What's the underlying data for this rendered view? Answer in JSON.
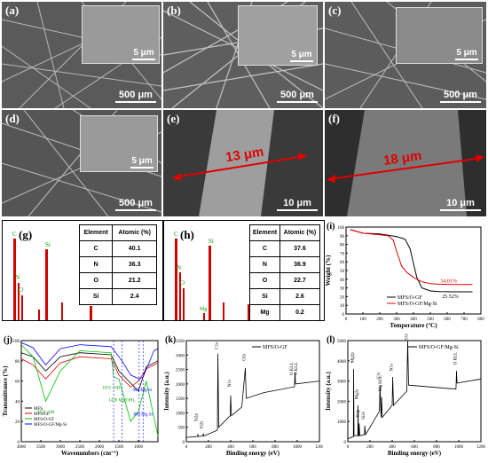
{
  "panels": {
    "a": {
      "label": "(a)",
      "scale": "500 μm",
      "inset_scale": "5 μm"
    },
    "b": {
      "label": "(b)",
      "scale": "500 μm",
      "inset_scale": "5 μm"
    },
    "c": {
      "label": "(c)",
      "scale": "500 μm",
      "inset_scale": "5 μm"
    },
    "d": {
      "label": "(d)",
      "scale": "500 μm",
      "inset_scale": "5 μm"
    },
    "e": {
      "label": "(e)",
      "scale": "10 μm",
      "measure": "13 μm"
    },
    "f": {
      "label": "(f)",
      "scale": "10 μm",
      "measure": "18 μm"
    },
    "g": {
      "label": "(g)"
    },
    "h": {
      "label": "(h)"
    },
    "i": {
      "label": "(i)"
    },
    "j": {
      "label": "(j)"
    },
    "k": {
      "label": "(k)"
    },
    "l": {
      "label": "(l)"
    }
  },
  "eds_g": {
    "headers": [
      "Element",
      "Atomic (%)"
    ],
    "rows": [
      [
        "C",
        "40.1"
      ],
      [
        "N",
        "36.3"
      ],
      [
        "O",
        "21.2"
      ],
      [
        "Si",
        "2.4"
      ]
    ],
    "peak_labels": [
      "C",
      "N",
      "O",
      "Si"
    ]
  },
  "eds_h": {
    "headers": [
      "Element",
      "Atomic (%)"
    ],
    "rows": [
      [
        "C",
        "37.6"
      ],
      [
        "N",
        "36.9"
      ],
      [
        "O",
        "22.7"
      ],
      [
        "Si",
        "2.6"
      ],
      [
        "Mg",
        "0.2"
      ]
    ],
    "peak_labels": [
      "C",
      "N",
      "O",
      "Si",
      "Mg"
    ]
  },
  "chart_data": [
    {
      "id": "i",
      "type": "line",
      "xlabel": "Temperature (°C)",
      "ylabel": "Weight (%)",
      "xlim": [
        0,
        800
      ],
      "ylim": [
        0,
        100
      ],
      "xticks": [
        0,
        100,
        200,
        300,
        400,
        500,
        600,
        700,
        800
      ],
      "yticks": [
        0,
        10,
        20,
        30,
        40,
        50,
        60,
        70,
        80,
        90,
        100
      ],
      "series": [
        {
          "name": "MFS/O-GF",
          "color": "#000000",
          "x": [
            25,
            100,
            200,
            300,
            350,
            380,
            400,
            420,
            450,
            500,
            550,
            600,
            650,
            700,
            750
          ],
          "y": [
            97,
            93,
            92,
            89,
            86,
            75,
            58,
            42,
            30,
            26.5,
            25.8,
            25.6,
            25.5,
            25.52,
            25.52
          ]
        },
        {
          "name": "MFS/O-GF/Mg-Si",
          "color": "#e00000",
          "x": [
            25,
            100,
            200,
            250,
            280,
            300,
            330,
            360,
            400,
            450,
            500,
            550,
            600,
            650,
            700,
            750
          ],
          "y": [
            97,
            93,
            91,
            90,
            85,
            72,
            55,
            48,
            42,
            37,
            35,
            34.3,
            34.1,
            34.01,
            34.01,
            34.01
          ]
        }
      ],
      "annotations": [
        "34.01%",
        "25.52%"
      ]
    },
    {
      "id": "j",
      "type": "line",
      "xlabel": "Wavenumbers (cm⁻¹)",
      "ylabel": "Transmittance (%)",
      "xlim": [
        4000,
        500
      ],
      "ylim": [
        0,
        100
      ],
      "xticks": [
        4000,
        3500,
        3000,
        2500,
        2000,
        1500,
        1000
      ],
      "yticks": [
        0,
        20,
        40,
        60,
        80,
        100
      ],
      "series": [
        {
          "name": "MFS",
          "color": "#000000"
        },
        {
          "name": "MFS/GF",
          "color": "#e00000"
        },
        {
          "name": "MFS/O-GF",
          "color": "#00c000"
        },
        {
          "name": "MFS/O-GF/Mg-Si",
          "color": "#0000ff"
        }
      ],
      "annotations": [
        "3374 -OH",
        "1635 -OH",
        "1420 Mg(OH)₂",
        "880 Mg-Si",
        "980 Mg-Si"
      ]
    },
    {
      "id": "k",
      "type": "line",
      "xlabel": "Binding energy (eV)",
      "ylabel": "Intensity (a.u.)",
      "xlim": [
        0,
        1200
      ],
      "xticks": [
        0,
        200,
        400,
        600,
        800,
        1000,
        1200
      ],
      "yticks": [
        0,
        500,
        1000,
        1500,
        2000,
        2500,
        3000,
        3500
      ],
      "series": [
        {
          "name": "MFS/O-GF",
          "color": "#000000"
        }
      ],
      "annotations": [
        "Si2p",
        "Si2s",
        "C1s",
        "N1s",
        "O1s",
        "O KLL",
        "O KLL"
      ]
    },
    {
      "id": "l",
      "type": "line",
      "xlabel": "Binding energy (eV)",
      "ylabel": "Intensity (a.u.)",
      "xlim": [
        0,
        1200
      ],
      "xticks": [
        0,
        200,
        400,
        600,
        800,
        1000,
        1200
      ],
      "yticks": [
        0,
        1000,
        2000,
        3000,
        4000,
        5000
      ],
      "series": [
        {
          "name": "MFS/O-GF/Mg-Si",
          "color": "#000000"
        }
      ],
      "annotations": [
        "Mg2p",
        "Mg2s",
        "Si2p",
        "Si2s",
        "C1s",
        "Mg KLL",
        "N1s",
        "O1s",
        "O KLL"
      ]
    }
  ]
}
